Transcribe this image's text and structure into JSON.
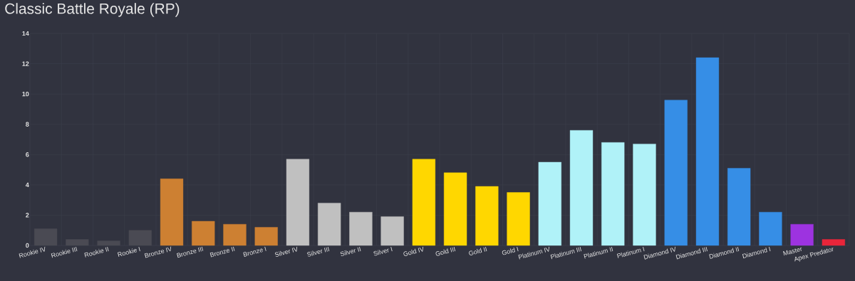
{
  "chart_data": {
    "type": "bar",
    "title": "Classic Battle Royale (RP)",
    "categories": [
      "Rookie IV",
      "Rookie III",
      "Rookie II",
      "Rookie I",
      "Bronze IV",
      "Bronze III",
      "Bronze II",
      "Bronze I",
      "Silver IV",
      "Silver III",
      "Silver II",
      "Silver I",
      "Gold IV",
      "Gold III",
      "Gold II",
      "Gold I",
      "Platinum IV",
      "Platinum III",
      "Platinum II",
      "Platinum I",
      "Diamond IV",
      "Diamond III",
      "Diamond II",
      "Diamond I",
      "Master",
      "Apex Predator"
    ],
    "values": [
      1.1,
      0.4,
      0.3,
      1.0,
      4.4,
      1.6,
      1.4,
      1.2,
      5.7,
      2.8,
      2.2,
      1.9,
      5.7,
      4.8,
      3.9,
      3.5,
      5.5,
      7.6,
      6.8,
      6.7,
      9.6,
      12.4,
      5.1,
      2.2,
      1.4,
      0.4
    ],
    "colors": [
      "#4a4a53",
      "#4a4a53",
      "#4a4a53",
      "#4a4a53",
      "#cd8032",
      "#cd8032",
      "#cd8032",
      "#cd8032",
      "#c0c0c0",
      "#c0c0c0",
      "#c0c0c0",
      "#c0c0c0",
      "#ffd700",
      "#ffd700",
      "#ffd700",
      "#ffd700",
      "#b0f2f8",
      "#b0f2f8",
      "#b0f2f8",
      "#b0f2f8",
      "#368ee6",
      "#368ee6",
      "#368ee6",
      "#368ee6",
      "#9d33e0",
      "#e8253a"
    ],
    "ylim": [
      0,
      14
    ],
    "yticks": [
      0,
      2,
      4,
      6,
      8,
      10,
      12,
      14
    ],
    "grid": true
  }
}
